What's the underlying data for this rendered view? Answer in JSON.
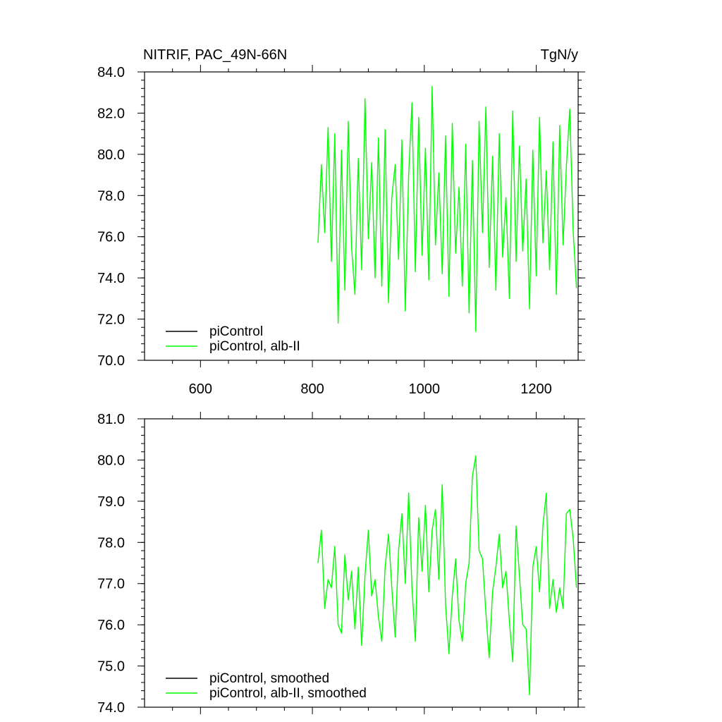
{
  "chart_data": [
    {
      "type": "line",
      "title": "NITRIF, PAC_49N-66N",
      "units": "TgN/y",
      "xlim": [
        500,
        1275
      ],
      "ylim": [
        70.0,
        84.0
      ],
      "x_ticks": [
        600,
        800,
        1000,
        1200
      ],
      "x_tick_labels": [
        "600",
        "800",
        "1000",
        "1200"
      ],
      "y_ticks": [
        70,
        72,
        74,
        76,
        78,
        80,
        82,
        84
      ],
      "y_tick_labels": [
        "70.0",
        "72.0",
        "74.0",
        "76.0",
        "78.0",
        "80.0",
        "82.0",
        "84.0"
      ],
      "legend": {
        "position": "bottom-left",
        "entries": [
          {
            "label": "piControl",
            "color": "#000000"
          },
          {
            "label": "piControl, alb-II",
            "color": "#00ff00"
          }
        ]
      },
      "series": [
        {
          "name": "piControl",
          "color": "#000000",
          "x": [],
          "y": []
        },
        {
          "name": "piControl, alb-II",
          "color": "#00ff00",
          "x": [
            810,
            816,
            822,
            828,
            834,
            840,
            846,
            852,
            858,
            864,
            870,
            876,
            882,
            888,
            894,
            900,
            906,
            912,
            918,
            924,
            930,
            936,
            942,
            948,
            954,
            960,
            966,
            972,
            978,
            984,
            990,
            996,
            1002,
            1008,
            1014,
            1020,
            1026,
            1032,
            1038,
            1044,
            1050,
            1056,
            1062,
            1068,
            1074,
            1080,
            1086,
            1092,
            1098,
            1104,
            1110,
            1116,
            1122,
            1128,
            1134,
            1140,
            1146,
            1152,
            1158,
            1164,
            1170,
            1176,
            1182,
            1188,
            1194,
            1200,
            1206,
            1212,
            1218,
            1224,
            1230,
            1236,
            1242,
            1248,
            1254,
            1260,
            1266,
            1272
          ],
          "y": [
            75.7,
            79.5,
            76.2,
            81.3,
            74.8,
            81.0,
            71.8,
            80.2,
            73.4,
            81.6,
            75.5,
            73.2,
            79.8,
            74.4,
            82.7,
            75.9,
            79.6,
            74.0,
            80.8,
            73.6,
            81.2,
            72.8,
            77.9,
            79.5,
            74.9,
            80.7,
            72.4,
            79.0,
            82.5,
            74.3,
            81.8,
            75.1,
            80.3,
            73.9,
            83.3,
            75.6,
            79.1,
            74.2,
            80.9,
            73.1,
            81.5,
            75.2,
            78.4,
            73.6,
            80.5,
            72.3,
            79.7,
            71.4,
            81.6,
            76.2,
            82.3,
            74.5,
            79.9,
            73.4,
            81.0,
            75.0,
            77.9,
            73.0,
            82.1,
            74.8,
            80.4,
            75.3,
            78.8,
            72.5,
            80.2,
            74.1,
            81.8,
            75.7,
            79.2,
            74.4,
            80.6,
            73.2,
            81.4,
            75.6,
            79.4,
            82.2,
            76.3,
            73.5
          ]
        }
      ]
    },
    {
      "type": "line",
      "xlim": [
        500,
        1275
      ],
      "ylim": [
        74.0,
        81.0
      ],
      "y_ticks": [
        74,
        75,
        76,
        77,
        78,
        79,
        80,
        81
      ],
      "y_tick_labels": [
        "74.0",
        "75.0",
        "76.0",
        "77.0",
        "78.0",
        "79.0",
        "80.0",
        "81.0"
      ],
      "legend": {
        "position": "bottom-left",
        "entries": [
          {
            "label": "piControl, smoothed",
            "color": "#000000"
          },
          {
            "label": "piControl, alb-II, smoothed",
            "color": "#00ff00"
          }
        ]
      },
      "series": [
        {
          "name": "piControl, smoothed",
          "color": "#000000",
          "x": [],
          "y": []
        },
        {
          "name": "piControl, alb-II, smoothed",
          "color": "#00ff00",
          "x": [
            810,
            816,
            822,
            828,
            834,
            840,
            846,
            852,
            858,
            864,
            870,
            876,
            882,
            888,
            894,
            900,
            906,
            912,
            918,
            924,
            930,
            936,
            942,
            948,
            954,
            960,
            966,
            972,
            978,
            984,
            990,
            996,
            1002,
            1008,
            1014,
            1020,
            1026,
            1032,
            1038,
            1044,
            1050,
            1056,
            1062,
            1068,
            1074,
            1080,
            1086,
            1092,
            1098,
            1104,
            1110,
            1116,
            1122,
            1128,
            1134,
            1140,
            1146,
            1152,
            1158,
            1164,
            1170,
            1176,
            1182,
            1188,
            1194,
            1200,
            1206,
            1212,
            1218,
            1224,
            1230,
            1236,
            1242,
            1248,
            1254,
            1260,
            1266,
            1272
          ],
          "y": [
            77.5,
            78.3,
            76.4,
            77.1,
            76.9,
            77.9,
            76.0,
            75.8,
            77.7,
            76.6,
            77.3,
            75.9,
            77.4,
            75.5,
            77.2,
            78.3,
            76.7,
            77.1,
            76.2,
            75.6,
            77.4,
            78.2,
            76.9,
            75.7,
            77.8,
            78.7,
            77.0,
            79.2,
            76.9,
            75.6,
            78.6,
            77.3,
            78.9,
            76.8,
            78.3,
            78.8,
            77.1,
            79.4,
            76.5,
            75.3,
            76.7,
            77.6,
            76.1,
            75.6,
            77.0,
            77.5,
            79.6,
            80.1,
            77.8,
            77.6,
            76.3,
            75.2,
            76.8,
            77.4,
            78.2,
            76.9,
            77.3,
            76.1,
            75.1,
            78.4,
            77.2,
            76.0,
            75.9,
            74.3,
            77.4,
            77.9,
            76.8,
            78.4,
            79.2,
            76.4,
            77.1,
            76.3,
            76.9,
            76.4,
            78.7,
            78.8,
            78.1,
            76.9
          ]
        }
      ]
    }
  ]
}
